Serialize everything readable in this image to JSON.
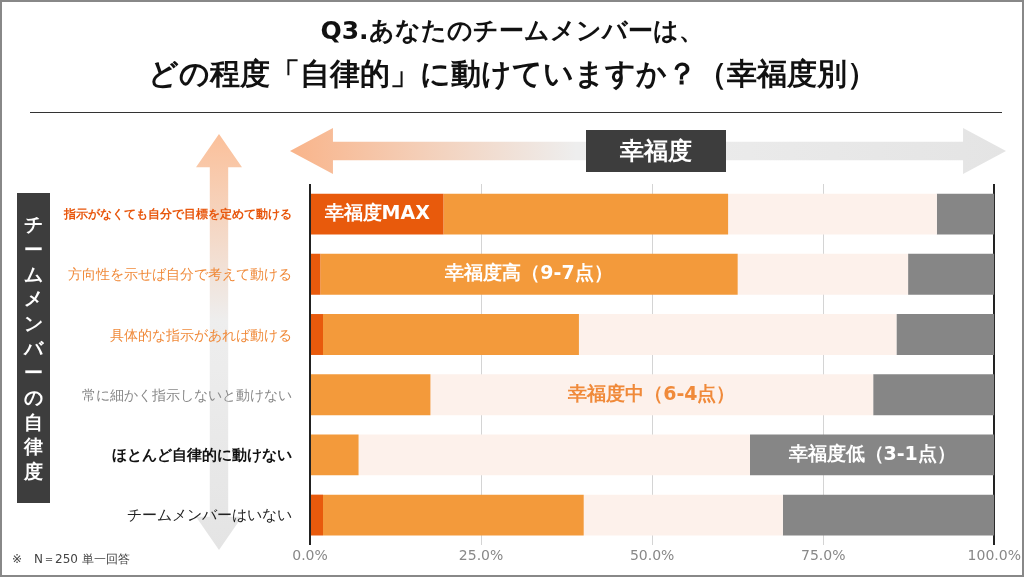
{
  "chart_data": {
    "type": "bar",
    "orientation": "horizontal",
    "stacked": true,
    "title": "Q3.あなたのチームメンバーは、",
    "subtitle": "どの程度「自律的」に動けていますか？（幸福度別）",
    "xlabel": "幸福度",
    "ylabel": "チームメンバーの自律度",
    "categories": [
      "指示がなくても自分で目標を定めて動ける",
      "方向性を示せば自分で考えて動ける",
      "具体的な指示があれば動ける",
      "常に細かく指示しないと動けない",
      "ほとんど自律的に動けない",
      "チームメンバーはいない"
    ],
    "series": [
      {
        "name": "幸福度MAX",
        "color": "#e85a0c",
        "values": [
          19.5,
          1.5,
          1.9,
          0,
          0,
          1.9
        ]
      },
      {
        "name": "幸福度高（9-7点）",
        "color": "#f39a3b",
        "values": [
          41.6,
          61.0,
          37.4,
          17.6,
          7.1,
          38.1
        ]
      },
      {
        "name": "幸福度中（6-4点）",
        "color": "#fdf1eb",
        "values": [
          30.5,
          24.9,
          46.4,
          64.7,
          57.2,
          29.1
        ]
      },
      {
        "name": "幸福度低（3-1点）",
        "color": "#868686",
        "values": [
          8.4,
          12.6,
          14.3,
          17.7,
          35.7,
          30.9
        ]
      }
    ],
    "xlim": [
      0,
      100
    ],
    "xticks": [
      {
        "value": 0,
        "label": "0.0%"
      },
      {
        "value": 25,
        "label": "25.0%"
      },
      {
        "value": 50,
        "label": "50.0%"
      },
      {
        "value": 75,
        "label": "75.0%"
      },
      {
        "value": 100,
        "label": "100.0%"
      }
    ],
    "grid": "x",
    "annotations": [
      "※　N＝250 単一回答"
    ]
  }
}
